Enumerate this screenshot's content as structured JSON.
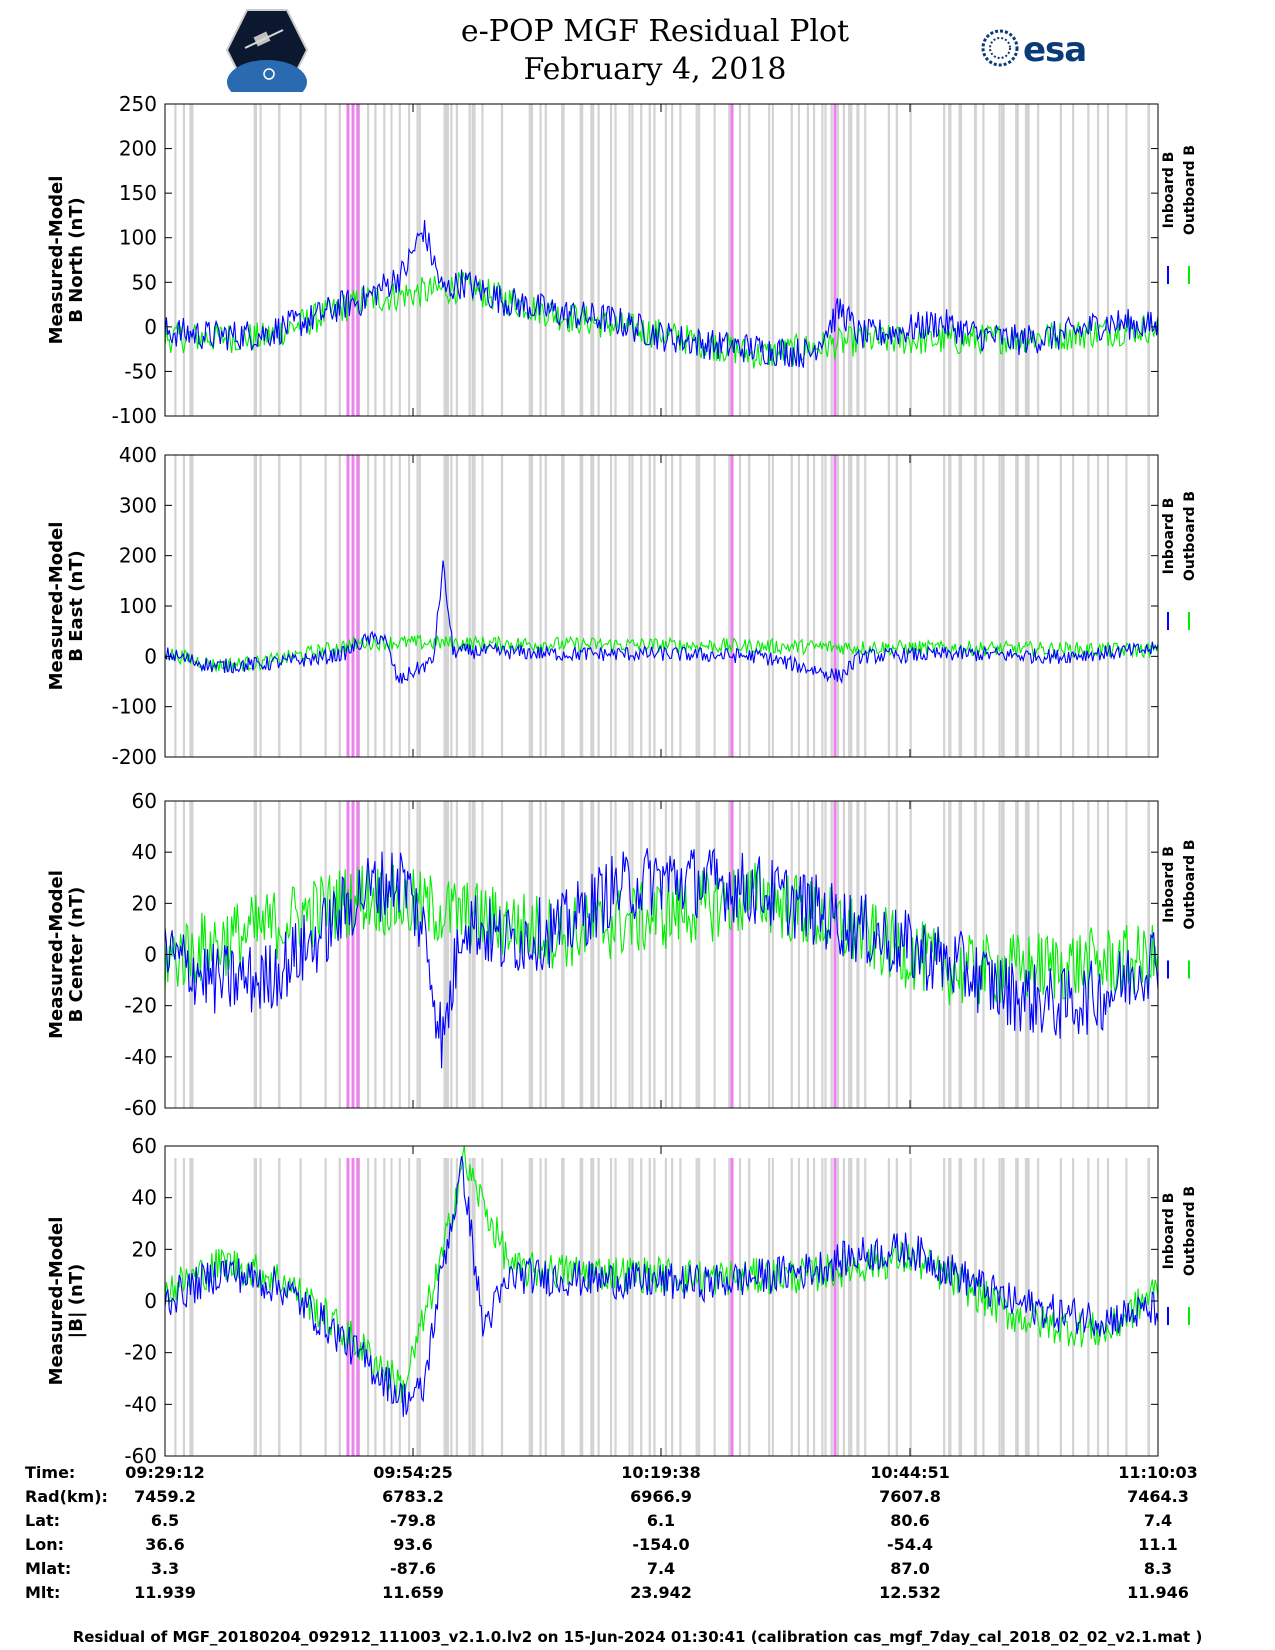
{
  "header": {
    "title_line1": "e-POP MGF Residual Plot",
    "title_line2": "February 4, 2018",
    "left_logo": "cassiope-mission-logo",
    "right_logo_text": "esa"
  },
  "colors": {
    "inboard": "#0000ff",
    "outboard": "#00ee00",
    "gap_gray": "#d3d3d3",
    "gap_magenta": "#ee82ee"
  },
  "legend": {
    "inboard": "Inboard B",
    "outboard": "Outboard B"
  },
  "chart_data": [
    {
      "type": "line",
      "id": "north",
      "ylabel_line1": "Measured-Model",
      "ylabel_line2": "B North (nT)",
      "ylim": [
        -100,
        250
      ],
      "yticks": [
        "250",
        "200",
        "150",
        "100",
        "50",
        "0",
        "-50",
        "-100"
      ],
      "series": [
        {
          "name": "Inboard B",
          "x": [
            0,
            0.05,
            0.1,
            0.15,
            0.18,
            0.2,
            0.22,
            0.24,
            0.26,
            0.28,
            0.3,
            0.34,
            0.4,
            0.45,
            0.5,
            0.55,
            0.6,
            0.65,
            0.68,
            0.7,
            0.74,
            0.78,
            0.82,
            0.86,
            0.9,
            0.95,
            1.0
          ],
          "values": [
            -5,
            -10,
            -8,
            10,
            25,
            30,
            45,
            60,
            110,
            40,
            50,
            30,
            15,
            8,
            -10,
            -20,
            -25,
            -30,
            20,
            -10,
            -5,
            5,
            -10,
            -15,
            -10,
            5,
            0
          ]
        },
        {
          "name": "Outboard B",
          "x": [
            0,
            0.1,
            0.2,
            0.3,
            0.4,
            0.5,
            0.6,
            0.7,
            0.8,
            0.9,
            1.0
          ],
          "values": [
            -12,
            -12,
            30,
            45,
            12,
            -8,
            -32,
            -15,
            -15,
            -10,
            0
          ]
        }
      ]
    },
    {
      "type": "line",
      "id": "east",
      "ylabel_line1": "Measured-Model",
      "ylabel_line2": "B East (nT)",
      "ylim": [
        -200,
        400
      ],
      "yticks": [
        "400",
        "300",
        "200",
        "100",
        "0",
        "-100",
        "-200"
      ],
      "series": [
        {
          "name": "Inboard B",
          "x": [
            0,
            0.05,
            0.1,
            0.15,
            0.18,
            0.2,
            0.22,
            0.235,
            0.25,
            0.27,
            0.28,
            0.29,
            0.3,
            0.32,
            0.4,
            0.5,
            0.6,
            0.68,
            0.7,
            0.8,
            0.9,
            1.0
          ],
          "values": [
            5,
            -20,
            -15,
            -5,
            5,
            30,
            40,
            -50,
            -30,
            -10,
            180,
            10,
            10,
            10,
            5,
            5,
            0,
            -40,
            0,
            5,
            0,
            15
          ]
        },
        {
          "name": "Outboard B",
          "x": [
            0,
            0.05,
            0.1,
            0.2,
            1.0
          ],
          "values": [
            8,
            -18,
            -12,
            28,
            12
          ]
        }
      ]
    },
    {
      "type": "line",
      "id": "center",
      "ylabel_line1": "Measured-Model",
      "ylabel_line2": "B Center (nT)",
      "ylim": [
        -60,
        60
      ],
      "yticks": [
        "60",
        "40",
        "20",
        "0",
        "-20",
        "-40",
        "-60"
      ],
      "series": [
        {
          "name": "Inboard B",
          "x": [
            0,
            0.05,
            0.1,
            0.15,
            0.2,
            0.24,
            0.26,
            0.28,
            0.3,
            0.34,
            0.4,
            0.45,
            0.5,
            0.55,
            0.6,
            0.65,
            0.7,
            0.8,
            0.85,
            0.9,
            0.95,
            1.0
          ],
          "values": [
            0,
            -10,
            -10,
            5,
            25,
            30,
            10,
            -35,
            15,
            5,
            10,
            25,
            30,
            28,
            25,
            18,
            10,
            -5,
            -15,
            -20,
            -15,
            0
          ]
        },
        {
          "name": "Outboard B",
          "x": [
            0,
            0.2,
            0.4,
            0.6,
            0.8,
            1.0
          ],
          "values": [
            -2,
            23,
            8,
            23,
            -7,
            -2
          ]
        }
      ]
    },
    {
      "type": "line",
      "id": "total",
      "ylabel_line1": "Measured-Model",
      "ylabel_line2": "|B| (nT)",
      "ylim": [
        -60,
        60
      ],
      "yticks": [
        "60",
        "40",
        "20",
        "0",
        "-20",
        "-40",
        "-60"
      ],
      "series": [
        {
          "name": "Inboard B",
          "x": [
            0,
            0.06,
            0.12,
            0.18,
            0.22,
            0.24,
            0.26,
            0.28,
            0.3,
            0.32,
            0.35,
            0.45,
            0.55,
            0.65,
            0.7,
            0.75,
            0.8,
            0.85,
            0.9,
            0.95,
            1.0
          ],
          "values": [
            0,
            12,
            5,
            -15,
            -30,
            -38,
            -35,
            15,
            52,
            -10,
            10,
            8,
            7,
            12,
            18,
            20,
            10,
            0,
            -5,
            -7,
            -3
          ]
        },
        {
          "name": "Outboard B",
          "x": [
            0,
            0.06,
            0.12,
            0.18,
            0.22,
            0.24,
            0.28,
            0.3,
            0.35,
            0.45,
            0.55,
            0.65,
            0.7,
            0.75,
            0.8,
            0.85,
            0.9,
            0.95,
            1.0
          ],
          "values": [
            4,
            15,
            8,
            -12,
            -26,
            -34,
            18,
            55,
            12,
            11,
            9,
            10,
            14,
            17,
            7,
            -5,
            -10,
            -12,
            5
          ]
        }
      ]
    }
  ],
  "orbit_info": {
    "rows": [
      {
        "label": "Time:",
        "values": [
          "09:29:12",
          "09:54:25",
          "10:19:38",
          "10:44:51",
          "11:10:03"
        ]
      },
      {
        "label": "Rad(km):",
        "values": [
          "7459.2",
          "6783.2",
          "6966.9",
          "7607.8",
          "7464.3"
        ]
      },
      {
        "label": "Lat:",
        "values": [
          "6.5",
          "-79.8",
          "6.1",
          "80.6",
          "7.4"
        ]
      },
      {
        "label": "Lon:",
        "values": [
          "36.6",
          "93.6",
          "-154.0",
          "-54.4",
          "11.1"
        ]
      },
      {
        "label": "Mlat:",
        "values": [
          "3.3",
          "-87.6",
          "7.4",
          "87.0",
          "8.3"
        ]
      },
      {
        "label": "Mlt:",
        "values": [
          "11.939",
          "11.659",
          "23.942",
          "12.532",
          "11.946"
        ]
      }
    ]
  },
  "footer": "Residual of MGF_20180204_092912_111003_v2.1.0.lv2 on 15-Jun-2024 01:30:41 (calibration cas_mgf_7day_cal_2018_02_02_v2.1.mat )"
}
